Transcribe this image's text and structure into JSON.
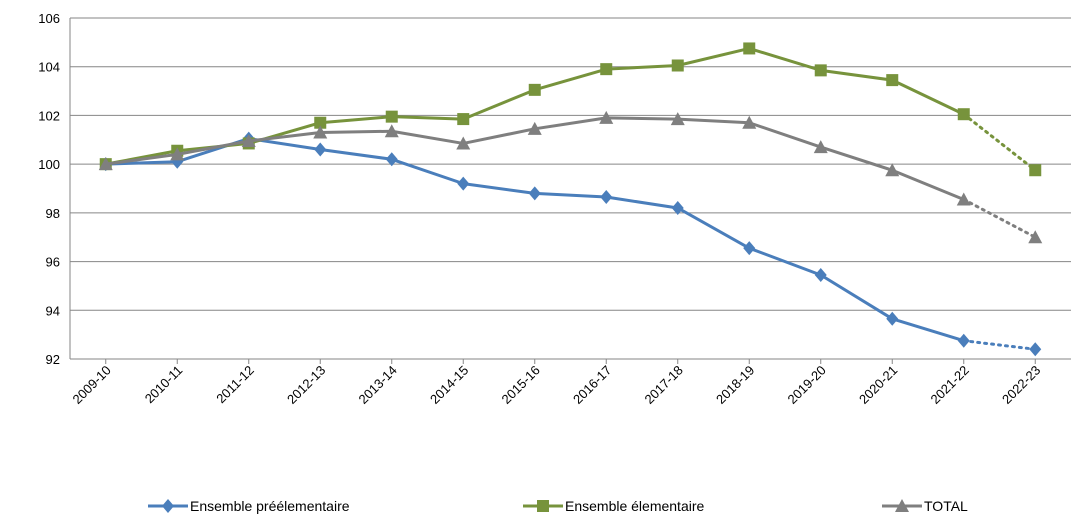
{
  "chart_data": {
    "type": "line",
    "title": "",
    "xlabel": "",
    "ylabel": "",
    "categories": [
      "2009-10",
      "2010-11",
      "2011-12",
      "2012-13",
      "2013-14",
      "2014-15",
      "2015-16",
      "2016-17",
      "2017-18",
      "2018-19",
      "2019-20",
      "2020-21",
      "2021-22",
      "2022-23"
    ],
    "ylim": [
      92,
      106
    ],
    "yticks": [
      92,
      94,
      96,
      98,
      100,
      102,
      104,
      106
    ],
    "yticks_labels": [
      "92",
      "94",
      "96",
      "98",
      "100",
      "102",
      "104",
      "106"
    ],
    "grid": true,
    "legend_position": "bottom",
    "projection_from_index": 12,
    "series": [
      {
        "name": "Ensemble préélementaire",
        "color": "#4a7ebb",
        "marker": "diamond",
        "values": [
          100.0,
          100.1,
          101.05,
          100.6,
          100.2,
          99.2,
          98.8,
          98.65,
          98.2,
          96.55,
          95.45,
          93.65,
          92.75,
          92.4
        ]
      },
      {
        "name": "Ensemble élementaire",
        "color": "#77933c",
        "marker": "square",
        "values": [
          100.0,
          100.55,
          100.85,
          101.7,
          101.95,
          101.85,
          103.05,
          103.9,
          104.05,
          104.75,
          103.85,
          103.45,
          102.05,
          99.75
        ]
      },
      {
        "name": "TOTAL",
        "color": "#7f7f7f",
        "marker": "triangle",
        "values": [
          100.0,
          100.4,
          100.95,
          101.3,
          101.35,
          100.85,
          101.45,
          101.9,
          101.85,
          101.7,
          100.7,
          99.75,
          98.55,
          97.0
        ]
      }
    ]
  }
}
